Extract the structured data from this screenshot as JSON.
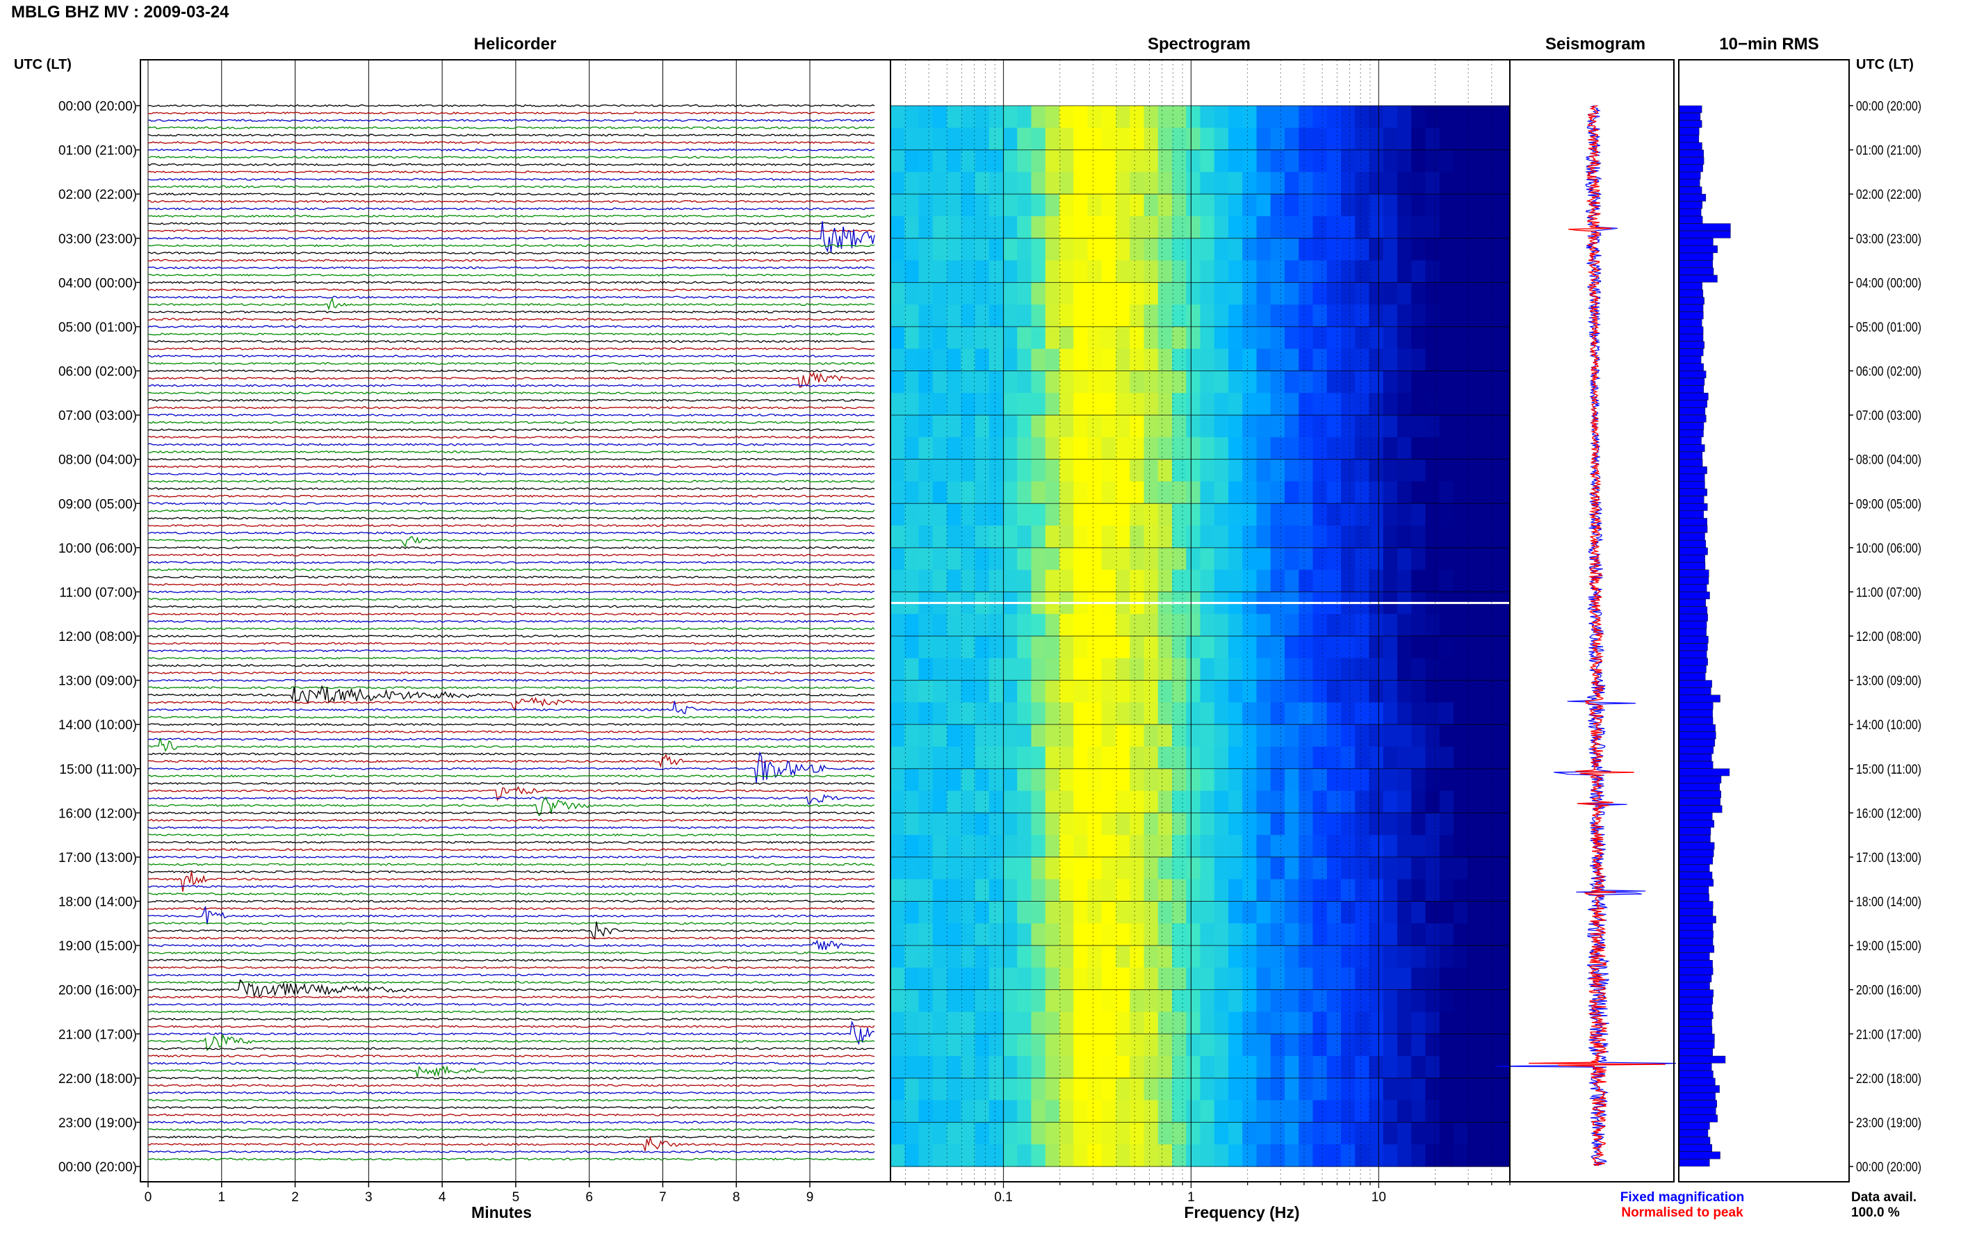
{
  "header": {
    "station_title": "MBLG BHZ MV : 2009-03-24"
  },
  "panels": {
    "helicorder": "Helicorder",
    "spectrogram": "Spectrogram",
    "seismogram": "Seismogram",
    "rms": "10−min RMS"
  },
  "time_axis": {
    "left_header": "UTC (LT)",
    "right_header": "UTC (LT)"
  },
  "footer": {
    "fixed_label": "Fixed magnification",
    "normalised_label": "Normalised to peak",
    "data_avail_label": "Data avail.",
    "data_avail_value": "100.0 %"
  },
  "colors": {
    "trace_black": "#000000",
    "trace_red": "#b00000",
    "trace_blue": "#0000c8",
    "trace_green": "#008c00",
    "rms_bar": "#0000ff",
    "seis_fixed": "#0000ff",
    "seis_normalised": "#ff0000",
    "spec_low": "#00008c",
    "spec_high": "#ffff00"
  },
  "chart_data": [
    {
      "type": "line",
      "name": "helicorder",
      "title": "Helicorder",
      "xlabel": "Minutes",
      "xlim": [
        0,
        10
      ],
      "x_ticks": [
        "0",
        "1",
        "2",
        "3",
        "4",
        "5",
        "6",
        "7",
        "8",
        "9"
      ],
      "row_minutes": 10,
      "rows": 144,
      "trace_color_cycle": [
        "black",
        "red",
        "blue",
        "green"
      ],
      "hour_labels": [
        "00:00 (20:00)",
        "01:00 (21:00)",
        "02:00 (22:00)",
        "03:00 (23:00)",
        "04:00 (00:00)",
        "05:00 (01:00)",
        "06:00 (02:00)",
        "07:00 (03:00)",
        "08:00 (04:00)",
        "09:00 (05:00)",
        "10:00 (06:00)",
        "11:00 (07:00)",
        "12:00 (08:00)",
        "13:00 (09:00)",
        "14:00 (10:00)",
        "15:00 (11:00)",
        "16:00 (12:00)",
        "17:00 (13:00)",
        "18:00 (14:00)",
        "19:00 (15:00)",
        "20:00 (16:00)",
        "21:00 (17:00)",
        "22:00 (18:00)",
        "23:00 (19:00)",
        "00:00 (20:00)"
      ],
      "events": [
        {
          "row": 18,
          "minute": 9.2,
          "duration": 0.9,
          "amp": 3.0
        },
        {
          "row": 27,
          "minute": 2.5,
          "duration": 0.2,
          "amp": 0.8
        },
        {
          "row": 37,
          "minute": 8.9,
          "duration": 0.6,
          "amp": 1.2
        },
        {
          "row": 59,
          "minute": 3.5,
          "duration": 0.3,
          "amp": 0.9
        },
        {
          "row": 80,
          "minute": 2.0,
          "duration": 2.5,
          "amp": 1.6
        },
        {
          "row": 81,
          "minute": 5.0,
          "duration": 0.8,
          "amp": 1.0
        },
        {
          "row": 82,
          "minute": 7.2,
          "duration": 0.3,
          "amp": 1.2
        },
        {
          "row": 87,
          "minute": 0.2,
          "duration": 0.2,
          "amp": 1.6
        },
        {
          "row": 89,
          "minute": 7.0,
          "duration": 0.3,
          "amp": 1.2
        },
        {
          "row": 90,
          "minute": 8.3,
          "duration": 0.9,
          "amp": 2.4
        },
        {
          "row": 93,
          "minute": 4.8,
          "duration": 0.5,
          "amp": 1.2
        },
        {
          "row": 94,
          "minute": 9.0,
          "duration": 0.4,
          "amp": 1.0
        },
        {
          "row": 95,
          "minute": 5.3,
          "duration": 0.7,
          "amp": 1.8
        },
        {
          "row": 105,
          "minute": 0.5,
          "duration": 0.3,
          "amp": 2.0
        },
        {
          "row": 110,
          "minute": 0.8,
          "duration": 0.3,
          "amp": 1.4
        },
        {
          "row": 112,
          "minute": 6.1,
          "duration": 0.3,
          "amp": 1.4
        },
        {
          "row": 114,
          "minute": 9.1,
          "duration": 0.4,
          "amp": 1.2
        },
        {
          "row": 120,
          "minute": 1.3,
          "duration": 2.2,
          "amp": 1.4
        },
        {
          "row": 126,
          "minute": 9.6,
          "duration": 0.3,
          "amp": 2.6
        },
        {
          "row": 127,
          "minute": 0.8,
          "duration": 0.6,
          "amp": 1.6
        },
        {
          "row": 131,
          "minute": 3.7,
          "duration": 0.9,
          "amp": 1.0
        },
        {
          "row": 141,
          "minute": 6.8,
          "duration": 0.4,
          "amp": 1.2
        }
      ]
    },
    {
      "type": "heatmap",
      "name": "spectrogram",
      "title": "Spectrogram",
      "xlabel": "Frequency (Hz)",
      "xscale": "log",
      "xlim": [
        0.025,
        50
      ],
      "x_tick_labels": [
        {
          "value": 0.1,
          "label": "0.1"
        },
        {
          "value": 1,
          "label": "1"
        },
        {
          "value": 10,
          "label": "10"
        }
      ],
      "ylim_hours": [
        0,
        24
      ],
      "peak_band_hz": [
        0.15,
        0.35
      ],
      "gap_hour": 11.25
    },
    {
      "type": "line",
      "name": "seismogram",
      "title": "Seismogram",
      "series": [
        {
          "name": "Fixed magnification",
          "color": "blue"
        },
        {
          "name": "Normalised to peak",
          "color": "red"
        }
      ],
      "spikes": [
        {
          "hour": 2.8,
          "amp": 0.55
        },
        {
          "hour": 13.5,
          "amp": 0.3
        },
        {
          "hour": 15.1,
          "amp": 0.5
        },
        {
          "hour": 15.8,
          "amp": 0.35
        },
        {
          "hour": 17.8,
          "amp": 0.4
        },
        {
          "hour": 21.7,
          "amp": 1.0
        }
      ]
    },
    {
      "type": "bar",
      "name": "rms",
      "title": "10−min RMS",
      "orientation": "horizontal",
      "bins_hours": 0.16667,
      "values_per_hour": [
        0.4,
        0.44,
        0.48,
        0.7,
        0.45,
        0.46,
        0.52,
        0.48,
        0.5,
        0.52,
        0.55,
        0.55,
        0.54,
        0.65,
        0.68,
        0.82,
        0.66,
        0.62,
        0.68,
        0.64,
        0.62,
        0.66,
        0.74,
        0.6
      ],
      "peaks": [
        {
          "hour": 2.75,
          "value": 1.0
        },
        {
          "hour": 15.05,
          "value": 0.98
        },
        {
          "hour": 21.55,
          "value": 0.9
        },
        {
          "hour": 13.4,
          "value": 0.8
        },
        {
          "hour": 23.7,
          "value": 0.8
        }
      ]
    }
  ]
}
